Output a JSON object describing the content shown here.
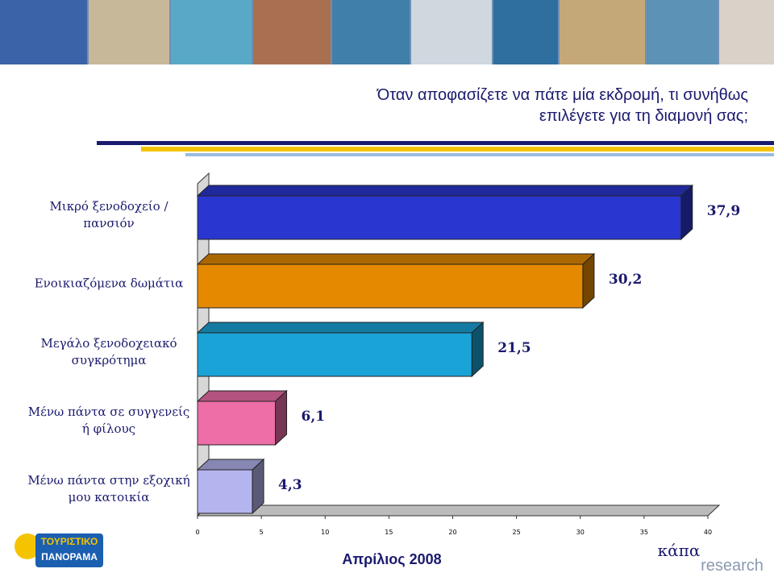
{
  "chart_data": {
    "type": "bar3d-horizontal",
    "title": "Όταν αποφασίζετε να πάτε μία εκδρομή, τι συνήθως",
    "subtitle": "επιλέγετε για τη διαμονή σας;",
    "categories": [
      "Μικρό ξενοδοχείο / πανσιόν",
      "Ενοικιαζόμενα δωμάτια",
      "Μεγάλο ξενοδοχειακό συγκρότημα",
      "Μένω πάντα σε συγγενείς ή φίλους",
      "Μένω πάντα στην εξοχική μου κατοικία"
    ],
    "values": [
      37.9,
      30.2,
      21.5,
      6.1,
      4.3
    ],
    "value_labels": [
      "37,9",
      "30,2",
      "21,5",
      "6,1",
      "4,3"
    ],
    "colors": [
      "#2a36d0",
      "#e58a00",
      "#1aa3d6",
      "#ee6ea8",
      "#b4b4ee"
    ],
    "xlim": [
      0,
      40
    ],
    "xticks": [
      0,
      5,
      10,
      15,
      20,
      25,
      30,
      35,
      40
    ]
  },
  "footer": {
    "date": "Απρίλιος 2008",
    "logo_left_1": "ΤΟΥΡΙΣΤΙΚΟ",
    "logo_left_2": "ΠΑΝΟΡΑΜΑ",
    "logo_right_1": "κάπα",
    "logo_right_2": "research"
  }
}
